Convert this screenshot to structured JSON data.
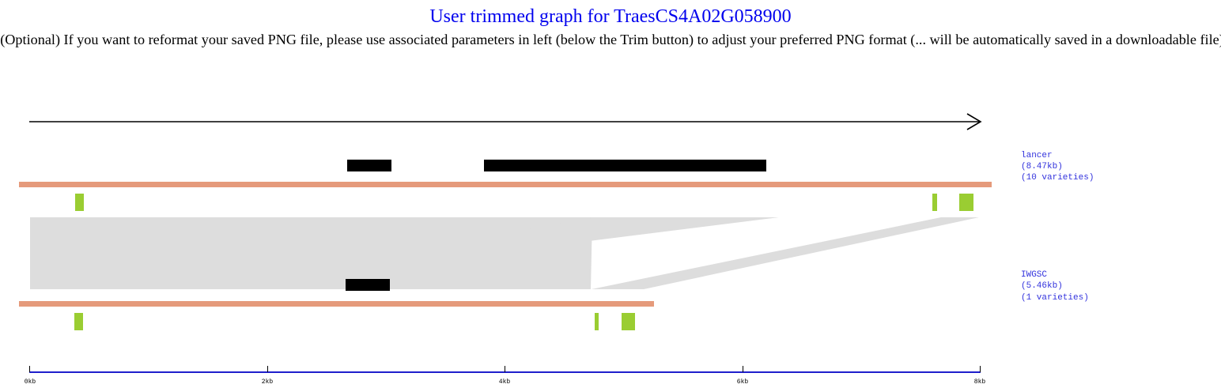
{
  "page": {
    "title": "User trimmed graph for TraesCS4A02G058900",
    "subtitle": "(Optional) If you want to reformat your saved PNG file, please use associated parameters in left (below the Trim button) to adjust your preferred PNG format (... will be automatically saved in a downloadable file)"
  },
  "colors": {
    "title": "#0000ee",
    "label": "#3333dd",
    "axis": "#1f1fcc",
    "track": "#e59a7b",
    "gene_block": "#000000",
    "repeat": "#9acd32",
    "synteny": "#dddddd"
  },
  "tracks": [
    {
      "name": "lancer",
      "size": "(8.47kb)",
      "varieties": "(10 varieties)",
      "length_kb": 8.47
    },
    {
      "name": "IWGSC",
      "size": "(5.46kb)",
      "varieties": "(1 varieties)",
      "length_kb": 5.46
    }
  ],
  "axis": {
    "ticks": [
      "0kb",
      "2kb",
      "4kb",
      "6kb",
      "8kb"
    ]
  }
}
